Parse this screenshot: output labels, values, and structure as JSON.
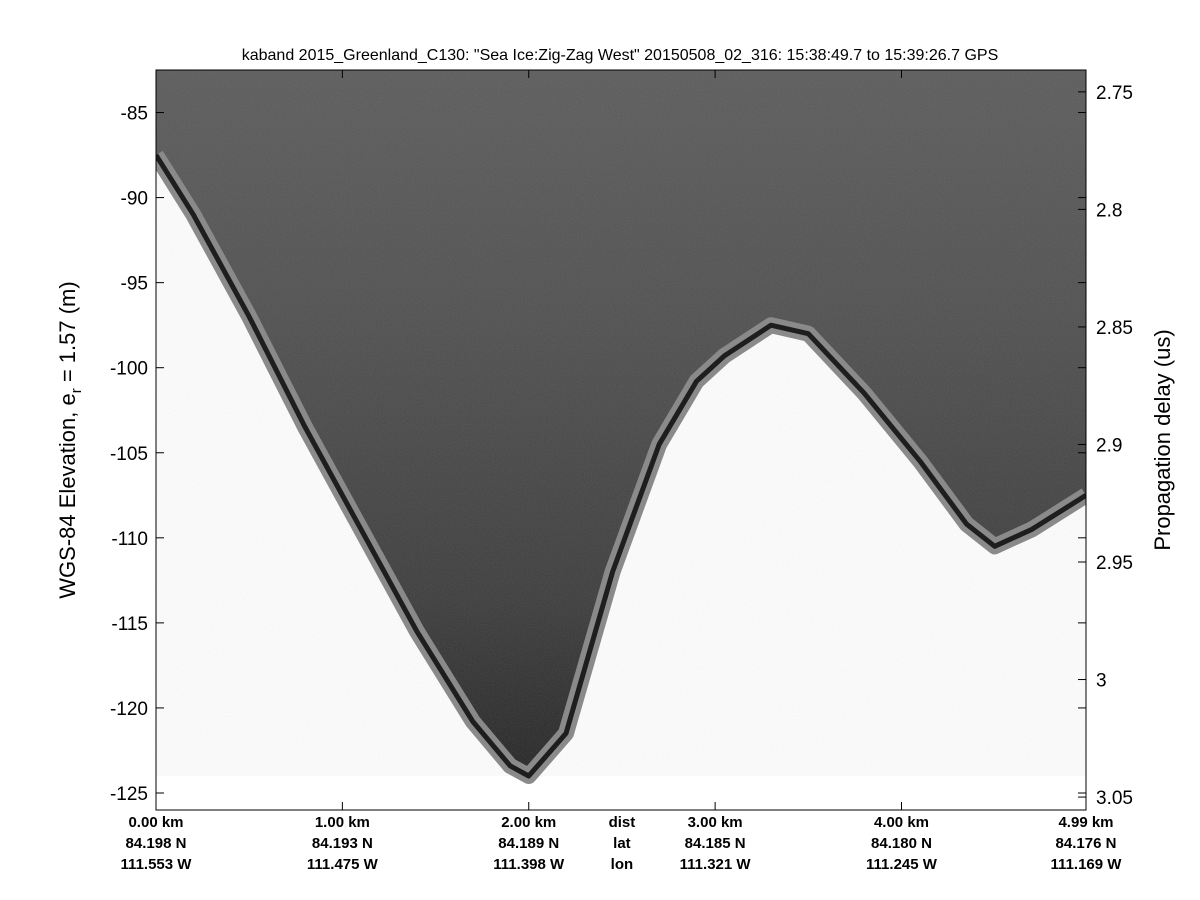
{
  "chart_data": {
    "type": "heatmap",
    "title": "kaband 2015_Greenland_C130: \"Sea Ice:Zig-Zag West\"  20150508_02_316: 15:38:49.7 to 15:39:26.7 GPS",
    "ylabel_left": "WGS-84 Elevation, e",
    "ylabel_left_subscript": "r",
    "ylabel_left_suffix": " = 1.57 (m)",
    "ylabel_right": "Propagation delay (us)",
    "ylim_left": [
      -126,
      -82.5
    ],
    "yticks_left": [
      -85,
      -90,
      -95,
      -100,
      -105,
      -110,
      -115,
      -120,
      -125
    ],
    "ytick_labels_left": [
      "-85",
      "-90",
      "-95",
      "-100",
      "-105",
      "-110",
      "-115",
      "-120",
      "-125"
    ],
    "yticks_right": [
      2.75,
      2.8,
      2.85,
      2.9,
      2.95,
      3.0,
      3.05
    ],
    "ytick_labels_right": [
      "2.75",
      "2.8",
      "2.85",
      "2.9",
      "2.95",
      "3",
      "3.05"
    ],
    "right_axis_range": [
      2.7407,
      3.0555
    ],
    "xlim": [
      0,
      4.99
    ],
    "x_ticks": [
      {
        "x": 0.0,
        "dist": "0.00 km",
        "lat": "84.198 N",
        "lon": "111.553 W"
      },
      {
        "x": 1.0,
        "dist": "1.00 km",
        "lat": "84.193 N",
        "lon": "111.475 W"
      },
      {
        "x": 2.0,
        "dist": "2.00 km",
        "lat": "84.189 N",
        "lon": "111.398 W"
      },
      {
        "x": 3.0,
        "dist": "3.00 km",
        "lat": "84.185 N",
        "lon": "111.321 W"
      },
      {
        "x": 4.0,
        "dist": "4.00 km",
        "lat": "84.180 N",
        "lon": "111.245 W"
      },
      {
        "x": 4.99,
        "dist": "4.99 km",
        "lat": "84.176 N",
        "lon": "111.169 W"
      }
    ],
    "x_row_labels": {
      "x": 2.5,
      "dist": "dist",
      "lat": "lat",
      "lon": "lon"
    },
    "surface_profile": {
      "x": [
        0.0,
        0.2,
        0.5,
        0.8,
        1.1,
        1.4,
        1.7,
        1.9,
        2.0,
        2.2,
        2.45,
        2.7,
        2.9,
        3.05,
        3.3,
        3.5,
        3.8,
        4.1,
        4.35,
        4.5,
        4.7,
        4.99
      ],
      "y": [
        -87.5,
        -91.0,
        -97.0,
        -103.5,
        -109.5,
        -115.5,
        -120.8,
        -123.4,
        -124.0,
        -121.5,
        -112.0,
        -104.5,
        -100.8,
        -99.3,
        -97.5,
        -98.0,
        -101.5,
        -105.5,
        -109.2,
        -110.5,
        -109.5,
        -107.5
      ]
    },
    "colormap": "gray",
    "grid": false
  }
}
